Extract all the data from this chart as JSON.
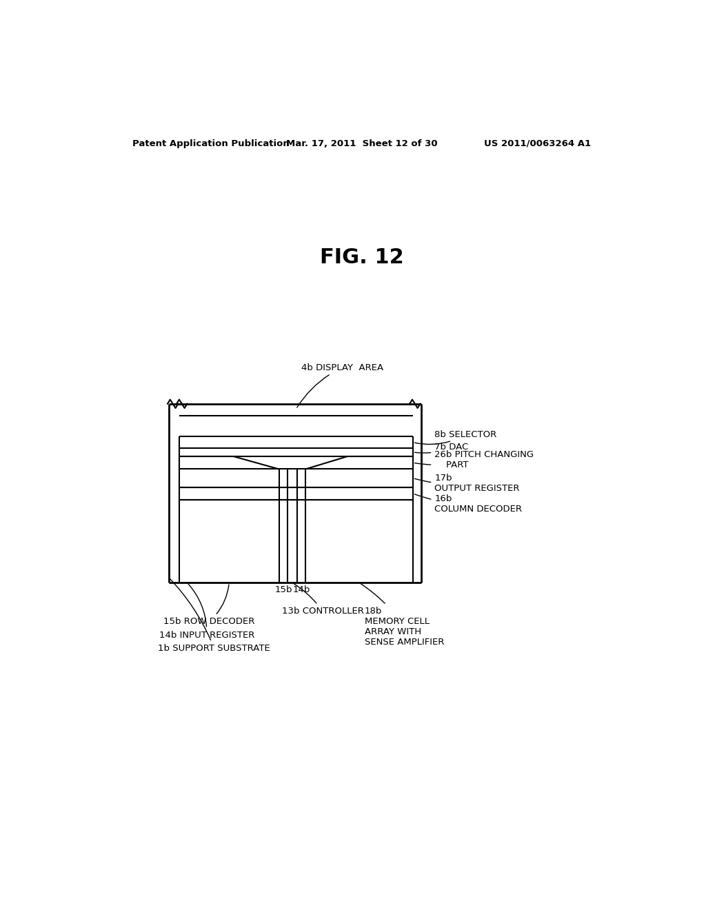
{
  "title": "FIG. 12",
  "header_left": "Patent Application Publication",
  "header_mid": "Mar. 17, 2011  Sheet 12 of 30",
  "header_right": "US 2011/0063264 A1",
  "background_color": "#ffffff",
  "line_color": "#000000",
  "labels": {
    "4b": "4b DISPLAY  AREA",
    "8b": "8b SELECTOR",
    "7b": "7b DAC",
    "26b": "26b PITCH CHANGING\n    PART",
    "17b": "17b\nOUTPUT REGISTER",
    "16b": "16b\nCOLUMN DECODER",
    "15b_top": "15b",
    "14b_top": "14b",
    "13b": "13b CONTROLLER",
    "15b": "15b ROW DECODER",
    "14b": "14b INPUT REGISTER",
    "1b": "1b SUPPORT SUBSTRATE",
    "18b": "18b\nMEMORY CELL\nARRAY WITH\nSENSE AMPLIFIER"
  }
}
